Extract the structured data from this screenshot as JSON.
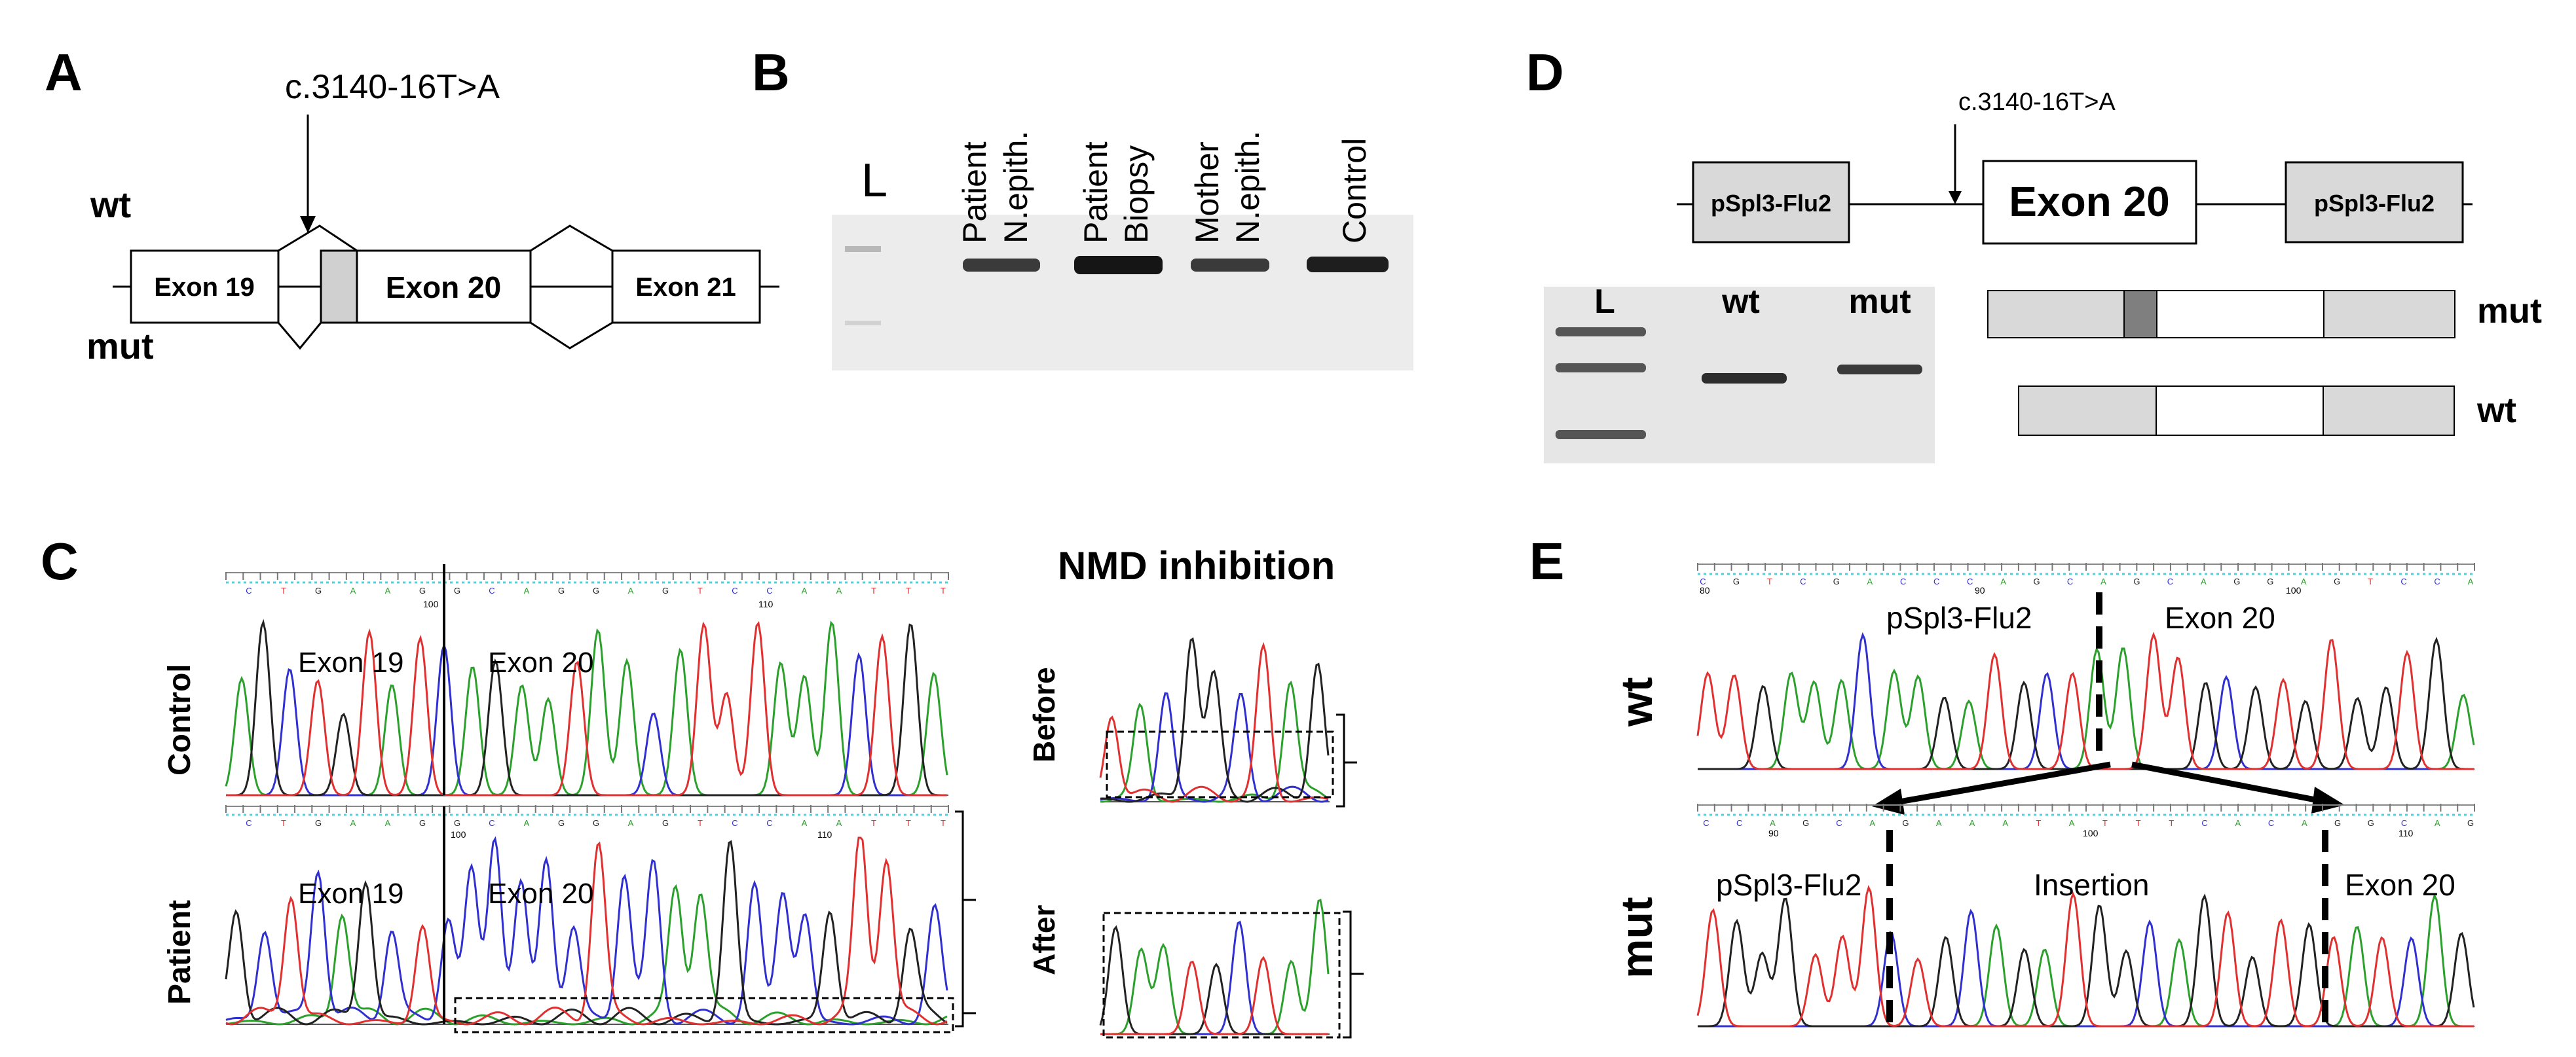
{
  "panels": {
    "A": {
      "letter": "A",
      "variant": "c.3140-16T>A",
      "wt_label": "wt",
      "mut_label": "mut",
      "exons": [
        "Exon 19",
        "Exon 20",
        "Exon 21"
      ]
    },
    "B": {
      "letter": "B",
      "ladder": "L",
      "lanes": [
        {
          "line1": "Patient",
          "line2": "N.epith."
        },
        {
          "line1": "Patient",
          "line2": "Biopsy"
        },
        {
          "line1": "Mother",
          "line2": "N.epith."
        },
        {
          "line1": "Control",
          "line2": ""
        }
      ]
    },
    "C": {
      "letter": "C",
      "title": "NMD inhibition",
      "rows": [
        "Control",
        "Patient"
      ],
      "exon_left": "Exon 19",
      "exon_right": "Exon 20",
      "side_rows": [
        "Before",
        "After"
      ],
      "bases": [
        "C",
        "T",
        "G",
        "A",
        "A",
        "G",
        "G",
        "C",
        "A",
        "G",
        "G",
        "A",
        "G",
        "T",
        "C",
        "C",
        "A",
        "A",
        "T",
        "T",
        "T"
      ],
      "ticks": [
        "100",
        "110"
      ]
    },
    "D": {
      "letter": "D",
      "variant": "c.3140-16T>A",
      "vector_left": "pSpl3-Flu2",
      "vector_right": "pSpl3-Flu2",
      "exon": "Exon 20",
      "gel_lanes": [
        "L",
        "wt",
        "mut"
      ],
      "products": [
        "mut",
        "wt"
      ]
    },
    "E": {
      "letter": "E",
      "rows": [
        "wt",
        "mut"
      ],
      "wt_labels": [
        "pSpl3-Flu2",
        "Exon 20"
      ],
      "mut_labels": [
        "pSpl3-Flu2",
        "Insertion",
        "Exon 20"
      ],
      "wt_bases": [
        "C",
        "G",
        "T",
        "C",
        "G",
        "A",
        "C",
        "C",
        "C",
        "A",
        "G",
        "C",
        "A",
        "G",
        "C",
        "A",
        "G",
        "G",
        "A",
        "G",
        "T",
        "C",
        "C",
        "A"
      ],
      "wt_ticks": [
        "80",
        "90",
        "100"
      ],
      "mut_bases": [
        "C",
        "C",
        "A",
        "G",
        "C",
        "A",
        "G",
        "A",
        "A",
        "A",
        "T",
        "A",
        "T",
        "T",
        "T",
        "C",
        "A",
        "C",
        "A",
        "G",
        "G",
        "C",
        "A",
        "G"
      ],
      "mut_ticks": [
        "90",
        "100",
        "110"
      ]
    }
  },
  "colors": {
    "trace_a": "#2ca02c",
    "trace_c": "#3030d0",
    "trace_g": "#222222",
    "trace_t": "#e03030",
    "box_fill": "#d9d9d9",
    "box_dark": "#7f7f7f",
    "gel_bg": "#ececec",
    "band": "#2a2a2a"
  }
}
